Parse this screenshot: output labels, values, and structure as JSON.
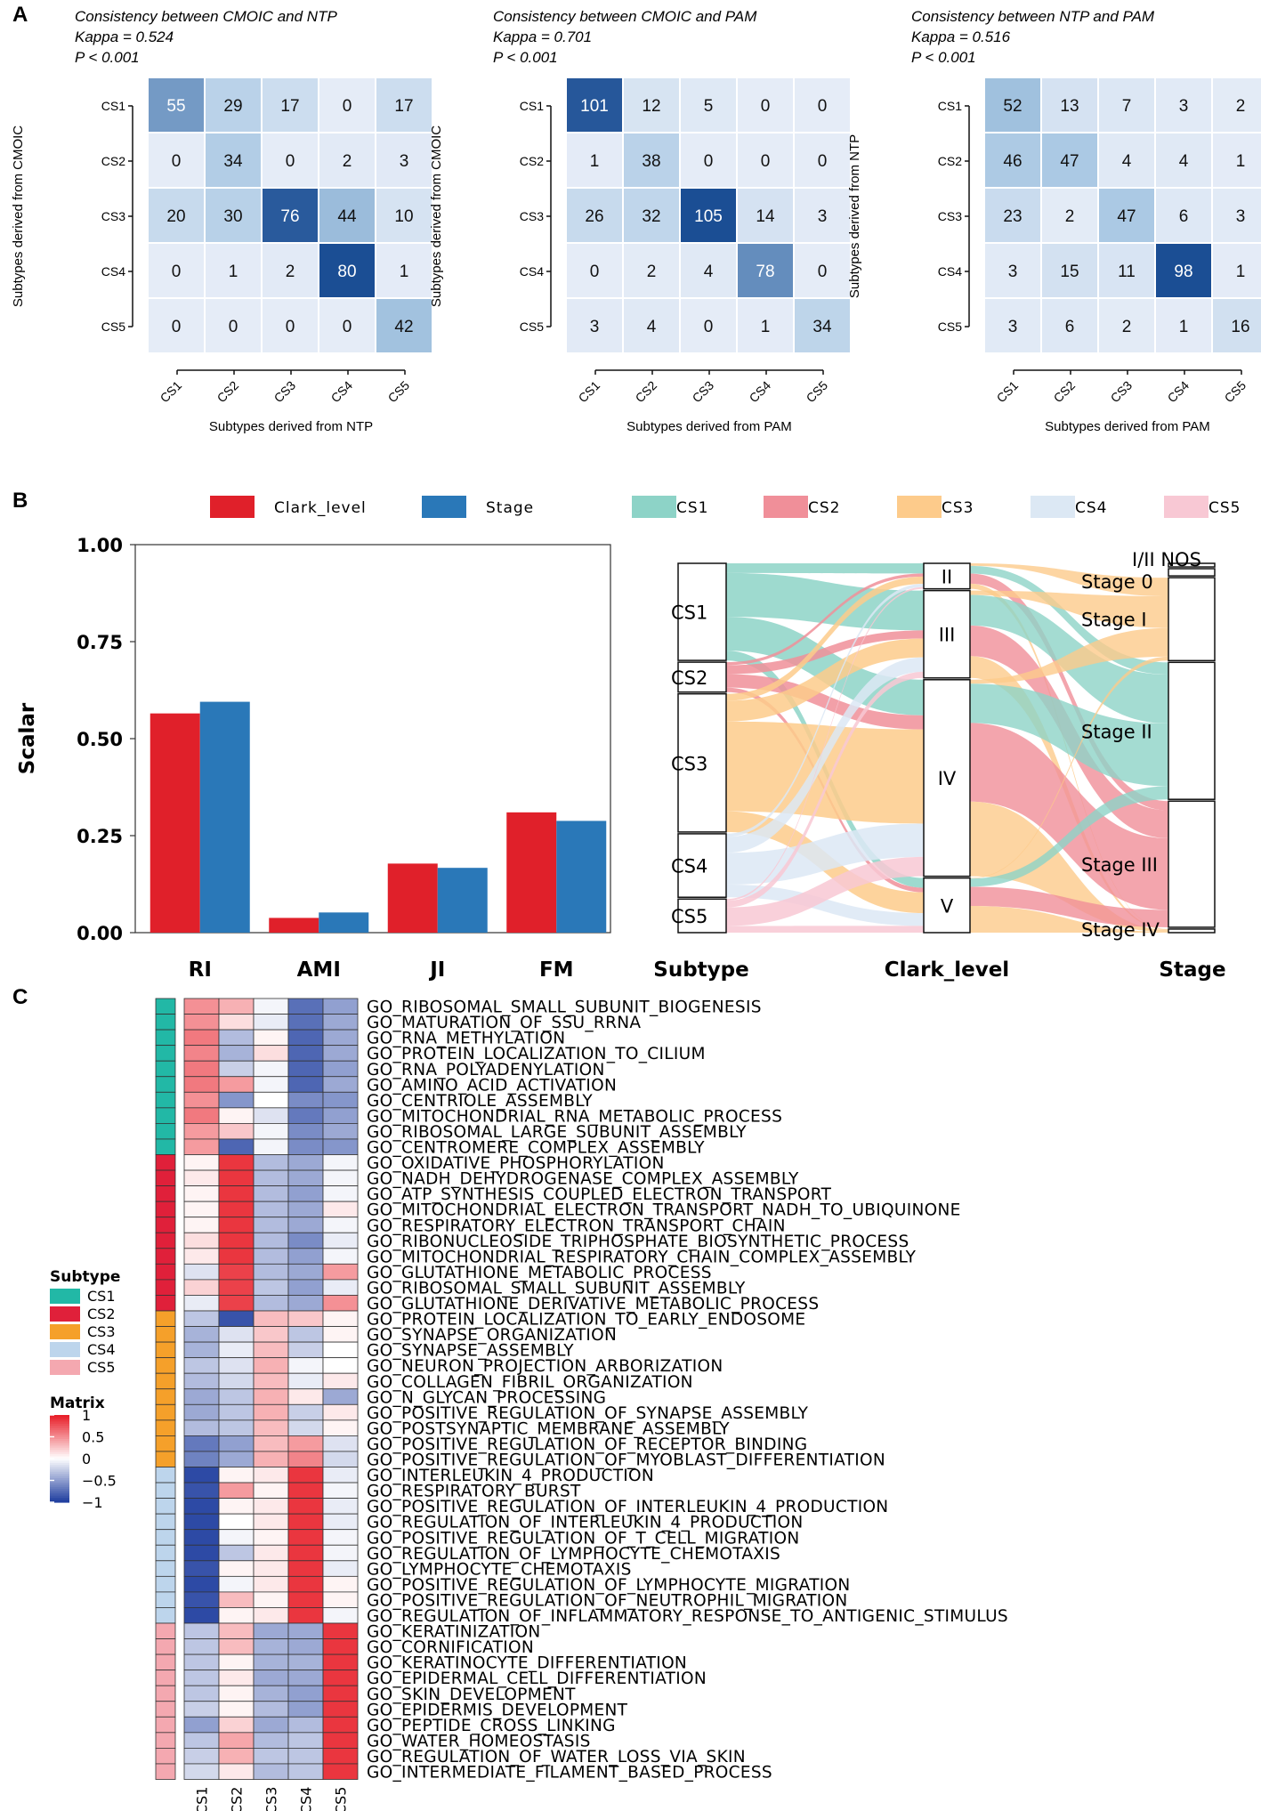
{
  "panels": {
    "a": "A",
    "b": "B",
    "c": "C"
  },
  "chart_data": [
    {
      "type": "heatmap",
      "title": "Consistency between CMOIC and NTP",
      "kappa": "Kappa = 0.524",
      "pvalue": "P < 0.001",
      "xlabel": "Subtypes derived from NTP",
      "ylabel": "Subtypes derived from CMOIC",
      "rows": [
        "CS1",
        "CS2",
        "CS3",
        "CS4",
        "CS5"
      ],
      "cols": [
        "CS1",
        "CS2",
        "CS3",
        "CS4",
        "CS5"
      ],
      "values": [
        [
          55,
          29,
          17,
          0,
          17
        ],
        [
          0,
          34,
          0,
          2,
          3
        ],
        [
          20,
          30,
          76,
          44,
          10
        ],
        [
          0,
          1,
          2,
          80,
          1
        ],
        [
          0,
          0,
          0,
          0,
          42
        ]
      ]
    },
    {
      "type": "heatmap",
      "title": "Consistency between CMOIC and PAM",
      "kappa": "Kappa = 0.701",
      "pvalue": "P < 0.001",
      "xlabel": "Subtypes derived from PAM",
      "ylabel": "Subtypes derived from CMOIC",
      "rows": [
        "CS1",
        "CS2",
        "CS3",
        "CS4",
        "CS5"
      ],
      "cols": [
        "CS1",
        "CS2",
        "CS3",
        "CS4",
        "CS5"
      ],
      "values": [
        [
          101,
          12,
          5,
          0,
          0
        ],
        [
          1,
          38,
          0,
          0,
          0
        ],
        [
          26,
          32,
          105,
          14,
          3
        ],
        [
          0,
          2,
          4,
          78,
          0
        ],
        [
          3,
          4,
          0,
          1,
          34
        ]
      ]
    },
    {
      "type": "heatmap",
      "title": "Consistency between NTP and PAM",
      "kappa": "Kappa = 0.516",
      "pvalue": "P < 0.001",
      "xlabel": "Subtypes derived from PAM",
      "ylabel": "Subtypes derived from NTP",
      "rows": [
        "CS1",
        "CS2",
        "CS3",
        "CS4",
        "CS5"
      ],
      "cols": [
        "CS1",
        "CS2",
        "CS3",
        "CS4",
        "CS5"
      ],
      "values": [
        [
          52,
          13,
          7,
          3,
          2
        ],
        [
          46,
          47,
          4,
          4,
          1
        ],
        [
          23,
          2,
          47,
          6,
          3
        ],
        [
          3,
          15,
          11,
          98,
          1
        ],
        [
          3,
          6,
          2,
          1,
          16
        ]
      ]
    },
    {
      "type": "bar",
      "ylabel": "Scalar",
      "categories": [
        "RI",
        "AMI",
        "JI",
        "FM"
      ],
      "series": [
        {
          "name": "Clark_level",
          "color": "#E0202A",
          "values": [
            0.565,
            0.038,
            0.178,
            0.31
          ]
        },
        {
          "name": "Stage",
          "color": "#2A78B8",
          "values": [
            0.595,
            0.052,
            0.167,
            0.288
          ]
        }
      ],
      "ylim": [
        0,
        1
      ],
      "yticks": [
        "0.00",
        "0.25",
        "0.50",
        "0.75",
        "1.00"
      ]
    },
    {
      "type": "alluvial",
      "axes": [
        "Subtype",
        "Clark_level",
        "Stage"
      ],
      "legend": [
        {
          "name": "CS1",
          "color": "#8DD3C7"
        },
        {
          "name": "CS2",
          "color": "#F08F99"
        },
        {
          "name": "CS3",
          "color": "#FDCB8B"
        },
        {
          "name": "CS4",
          "color": "#DCE8F4"
        },
        {
          "name": "CS5",
          "color": "#F8C8D4"
        }
      ],
      "subtype_nodes": [
        {
          "label": "CS1",
          "value": 0.26
        },
        {
          "label": "CS2",
          "value": 0.08
        },
        {
          "label": "CS3",
          "value": 0.37
        },
        {
          "label": "CS4",
          "value": 0.17
        },
        {
          "label": "CS5",
          "value": 0.09
        }
      ],
      "clark_nodes": [
        {
          "label": "II",
          "value": 0.07
        },
        {
          "label": "III",
          "value": 0.24
        },
        {
          "label": "IV",
          "value": 0.54
        },
        {
          "label": "V",
          "value": 0.15
        }
      ],
      "stage_nodes": [
        {
          "label": "I/II NOS",
          "value": 0.01
        },
        {
          "label": "Stage 0",
          "value": 0.02
        },
        {
          "label": "Stage I",
          "value": 0.23
        },
        {
          "label": "Stage II",
          "value": 0.38
        },
        {
          "label": "Stage III",
          "value": 0.35
        },
        {
          "label": "Stage IV",
          "value": 0.01
        }
      ]
    },
    {
      "type": "heatmap",
      "columns": [
        "CS1",
        "CS2",
        "CS3",
        "CS4",
        "CS5"
      ],
      "legend_subtype_title": "Subtype",
      "legend_matrix_title": "Matrix",
      "legend_matrix_ticks": [
        "1",
        "0.5",
        "0",
        "−0.5",
        "−1"
      ],
      "subtype_colors": {
        "CS1": "#22B8A6",
        "CS2": "#E0203A",
        "CS3": "#F5A02A",
        "CS4": "#BDD5EC",
        "CS5": "#F4A8B0"
      },
      "rows": [
        {
          "term": "GO_RIBOSOMAL_SMALL_SUBUNIT_BIOGENESIS",
          "subtype": "CS1",
          "values": [
            0.5,
            0.35,
            -0.05,
            -0.75,
            -0.5
          ]
        },
        {
          "term": "GO_MATURATION_OF_SSU_RRNA",
          "subtype": "CS1",
          "values": [
            0.5,
            0.15,
            -0.1,
            -0.75,
            -0.45
          ]
        },
        {
          "term": "GO_RNA_METHYLATION",
          "subtype": "CS1",
          "values": [
            0.6,
            -0.35,
            0.05,
            -0.8,
            -0.45
          ]
        },
        {
          "term": "GO_PROTEIN_LOCALIZATION_TO_CILIUM",
          "subtype": "CS1",
          "values": [
            0.55,
            -0.4,
            0.15,
            -0.8,
            -0.45
          ]
        },
        {
          "term": "GO_RNA_POLYADENYLATION",
          "subtype": "CS1",
          "values": [
            0.6,
            -0.25,
            -0.05,
            -0.8,
            -0.5
          ]
        },
        {
          "term": "GO_AMINO_ACID_ACTIVATION",
          "subtype": "CS1",
          "values": [
            0.6,
            0.45,
            -0.05,
            -0.8,
            -0.45
          ]
        },
        {
          "term": "GO_CENTRIOLE_ASSEMBLY",
          "subtype": "CS1",
          "values": [
            0.5,
            -0.55,
            0.0,
            -0.6,
            -0.55
          ]
        },
        {
          "term": "GO_MITOCHONDRIAL_RNA_METABOLIC_PROCESS",
          "subtype": "CS1",
          "values": [
            0.6,
            0.05,
            -0.15,
            -0.7,
            -0.5
          ]
        },
        {
          "term": "GO_RIBOSOMAL_LARGE_SUBUNIT_ASSEMBLY",
          "subtype": "CS1",
          "values": [
            0.45,
            0.25,
            -0.05,
            -0.6,
            -0.45
          ]
        },
        {
          "term": "GO_CENTROMERE_COMPLEX_ASSEMBLY",
          "subtype": "CS1",
          "values": [
            0.45,
            -0.8,
            -0.05,
            -0.6,
            -0.55
          ]
        },
        {
          "term": "GO_OXIDATIVE_PHOSPHORYLATION",
          "subtype": "CS2",
          "values": [
            0.05,
            0.9,
            -0.35,
            -0.45,
            -0.05
          ]
        },
        {
          "term": "GO_NADH_DEHYDROGENASE_COMPLEX_ASSEMBLY",
          "subtype": "CS2",
          "values": [
            0.1,
            0.9,
            -0.35,
            -0.45,
            -0.05
          ]
        },
        {
          "term": "GO_ATP_SYNTHESIS_COUPLED_ELECTRON_TRANSPORT",
          "subtype": "CS2",
          "values": [
            0.05,
            0.9,
            -0.35,
            -0.5,
            -0.05
          ]
        },
        {
          "term": "GO_MITOCHONDRIAL_ELECTRON_TRANSPORT_NADH_TO_UBIQUINONE",
          "subtype": "CS2",
          "values": [
            0.05,
            0.9,
            -0.35,
            -0.45,
            0.1
          ]
        },
        {
          "term": "GO_RESPIRATORY_ELECTRON_TRANSPORT_CHAIN",
          "subtype": "CS2",
          "values": [
            0.05,
            0.9,
            -0.35,
            -0.45,
            -0.05
          ]
        },
        {
          "term": "GO_RIBONUCLEOSIDE_TRIPHOSPHATE_BIOSYNTHETIC_PROCESS",
          "subtype": "CS2",
          "values": [
            0.15,
            0.9,
            -0.35,
            -0.6,
            -0.1
          ]
        },
        {
          "term": "GO_MITOCHONDRIAL_RESPIRATORY_CHAIN_COMPLEX_ASSEMBLY",
          "subtype": "CS2",
          "values": [
            0.1,
            0.9,
            -0.35,
            -0.5,
            -0.05
          ]
        },
        {
          "term": "GO_GLUTATHIONE_METABOLIC_PROCESS",
          "subtype": "CS2",
          "values": [
            -0.15,
            0.85,
            -0.35,
            -0.45,
            0.45
          ]
        },
        {
          "term": "GO_RIBOSOMAL_SMALL_SUBUNIT_ASSEMBLY",
          "subtype": "CS2",
          "values": [
            0.2,
            0.85,
            -0.3,
            -0.5,
            -0.1
          ]
        },
        {
          "term": "GO_GLUTATHIONE_DERIVATIVE_METABOLIC_PROCESS",
          "subtype": "CS2",
          "values": [
            -0.1,
            0.85,
            -0.35,
            -0.45,
            0.5
          ]
        },
        {
          "term": "GO_PROTEIN_LOCALIZATION_TO_EARLY_ENDOSOME",
          "subtype": "CS3",
          "values": [
            -0.3,
            -0.9,
            0.3,
            0.25,
            0.05
          ]
        },
        {
          "term": "GO_SYNAPSE_ORGANIZATION",
          "subtype": "CS3",
          "values": [
            -0.4,
            -0.15,
            0.25,
            -0.3,
            0.05
          ]
        },
        {
          "term": "GO_SYNAPSE_ASSEMBLY",
          "subtype": "CS3",
          "values": [
            -0.4,
            -0.1,
            0.3,
            -0.25,
            0.0
          ]
        },
        {
          "term": "GO_NEURON_PROJECTION_ARBORIZATION",
          "subtype": "CS3",
          "values": [
            -0.3,
            -0.15,
            0.35,
            -0.05,
            0.0
          ]
        },
        {
          "term": "GO_COLLAGEN_FIBRIL_ORGANIZATION",
          "subtype": "CS3",
          "values": [
            -0.35,
            -0.2,
            0.3,
            -0.1,
            0.1
          ]
        },
        {
          "term": "GO_N_GLYCAN_PROCESSING",
          "subtype": "CS3",
          "values": [
            -0.45,
            -0.3,
            0.35,
            0.1,
            -0.45
          ]
        },
        {
          "term": "GO_POSITIVE_REGULATION_OF_SYNAPSE_ASSEMBLY",
          "subtype": "CS3",
          "values": [
            -0.45,
            -0.3,
            0.35,
            -0.25,
            0.1
          ]
        },
        {
          "term": "GO_POSTSYNAPTIC_MEMBRANE_ASSEMBLY",
          "subtype": "CS3",
          "values": [
            -0.35,
            -0.3,
            0.3,
            -0.2,
            0.05
          ]
        },
        {
          "term": "GO_POSITIVE_REGULATION_OF_RECEPTOR_BINDING",
          "subtype": "CS3",
          "values": [
            -0.7,
            -0.5,
            0.3,
            0.45,
            -0.15
          ]
        },
        {
          "term": "GO_POSITIVE_REGULATION_OF_MYOBLAST_DIFFERENTIATION",
          "subtype": "CS3",
          "values": [
            -0.65,
            -0.45,
            0.35,
            0.55,
            -0.2
          ]
        },
        {
          "term": "GO_INTERLEUKIN_4_PRODUCTION",
          "subtype": "CS4",
          "values": [
            -0.95,
            0.05,
            0.1,
            0.9,
            -0.1
          ]
        },
        {
          "term": "GO_RESPIRATORY_BURST",
          "subtype": "CS4",
          "values": [
            -0.9,
            0.45,
            0.05,
            0.9,
            -0.05
          ]
        },
        {
          "term": "GO_POSITIVE_REGULATION_OF_INTERLEUKIN_4_PRODUCTION",
          "subtype": "CS4",
          "values": [
            -0.95,
            0.05,
            0.1,
            0.9,
            -0.1
          ]
        },
        {
          "term": "GO_REGULATION_OF_INTERLEUKIN_4_PRODUCTION",
          "subtype": "CS4",
          "values": [
            -0.95,
            0.0,
            0.1,
            0.9,
            -0.1
          ]
        },
        {
          "term": "GO_POSITIVE_REGULATION_OF_T_CELL_MIGRATION",
          "subtype": "CS4",
          "values": [
            -0.95,
            -0.05,
            0.05,
            0.9,
            -0.05
          ]
        },
        {
          "term": "GO_REGULATION_OF_LYMPHOCYTE_CHEMOTAXIS",
          "subtype": "CS4",
          "values": [
            -0.95,
            -0.3,
            0.1,
            0.9,
            -0.05
          ]
        },
        {
          "term": "GO_LYMPHOCYTE_CHEMOTAXIS",
          "subtype": "CS4",
          "values": [
            -0.9,
            0.05,
            0.1,
            0.9,
            -0.1
          ]
        },
        {
          "term": "GO_POSITIVE_REGULATION_OF_LYMPHOCYTE_MIGRATION",
          "subtype": "CS4",
          "values": [
            -0.95,
            -0.05,
            0.1,
            0.9,
            0.05
          ]
        },
        {
          "term": "GO_POSITIVE_REGULATION_OF_NEUTROPHIL_MIGRATION",
          "subtype": "CS4",
          "values": [
            -0.9,
            0.3,
            0.05,
            0.9,
            0.05
          ]
        },
        {
          "term": "GO_REGULATION_OF_INFLAMMATORY_RESPONSE_TO_ANTIGENIC_STIMULUS",
          "subtype": "CS4",
          "values": [
            -0.95,
            0.05,
            0.1,
            0.9,
            -0.05
          ]
        },
        {
          "term": "GO_KERATINIZATION",
          "subtype": "CS5",
          "values": [
            -0.3,
            0.3,
            -0.45,
            -0.45,
            0.9
          ]
        },
        {
          "term": "GO_CORNIFICATION",
          "subtype": "CS5",
          "values": [
            -0.3,
            0.3,
            -0.4,
            -0.45,
            0.9
          ]
        },
        {
          "term": "GO_KERATINOCYTE_DIFFERENTIATION",
          "subtype": "CS5",
          "values": [
            -0.3,
            0.05,
            -0.4,
            -0.4,
            0.9
          ]
        },
        {
          "term": "GO_EPIDERMAL_CELL_DIFFERENTIATION",
          "subtype": "CS5",
          "values": [
            -0.3,
            0.1,
            -0.45,
            -0.45,
            0.9
          ]
        },
        {
          "term": "GO_SKIN_DEVELOPMENT",
          "subtype": "CS5",
          "values": [
            -0.3,
            0.05,
            -0.4,
            -0.5,
            0.9
          ]
        },
        {
          "term": "GO_EPIDERMIS_DEVELOPMENT",
          "subtype": "CS5",
          "values": [
            -0.25,
            0.05,
            -0.35,
            -0.5,
            0.9
          ]
        },
        {
          "term": "GO_PEPTIDE_CROSS_LINKING",
          "subtype": "CS5",
          "values": [
            -0.5,
            0.2,
            -0.45,
            -0.35,
            0.9
          ]
        },
        {
          "term": "GO_WATER_HOMEOSTASIS",
          "subtype": "CS5",
          "values": [
            -0.3,
            0.4,
            -0.35,
            -0.3,
            0.9
          ]
        },
        {
          "term": "GO_REGULATION_OF_WATER_LOSS_VIA_SKIN",
          "subtype": "CS5",
          "values": [
            -0.25,
            0.35,
            -0.3,
            -0.3,
            0.9
          ]
        },
        {
          "term": "GO_INTERMEDIATE_FILAMENT_BASED_PROCESS",
          "subtype": "CS5",
          "values": [
            -0.2,
            0.1,
            -0.35,
            -0.3,
            0.9
          ]
        }
      ]
    }
  ]
}
